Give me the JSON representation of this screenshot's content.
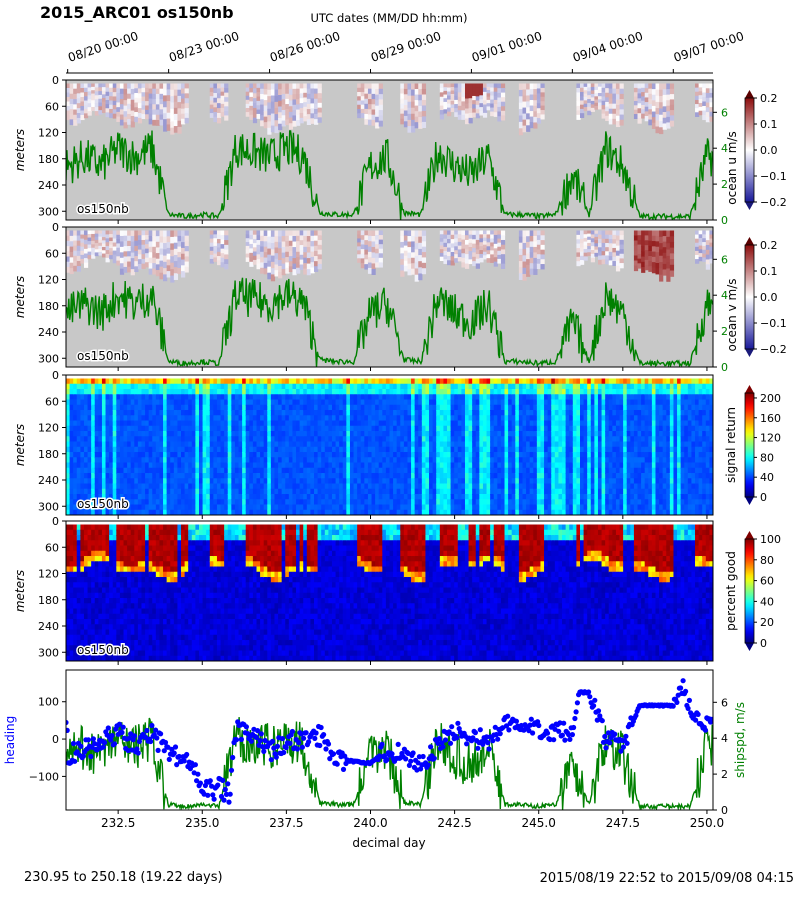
{
  "figure": {
    "title": "2015_ARC01 os150nb",
    "top_axis_label": "UTC dates (MM/DD hh:mm)",
    "top_ticks": [
      "08/20 00:00",
      "08/23 00:00",
      "08/26 00:00",
      "08/29 00:00",
      "09/01 00:00",
      "09/04 00:00",
      "09/07 00:00"
    ],
    "xlabel": "decimal day",
    "footer_left": "230.95 to 250.18 (19.22 days)",
    "footer_right": "2015/08/19 22:52 to 2015/09/08 04:15"
  },
  "chart_data": [
    {
      "type": "heatmap",
      "panel": "ocean u",
      "ylabel": "meters",
      "y_ticks": [
        0,
        60,
        120,
        180,
        240,
        300
      ],
      "ylim": [
        320,
        0
      ],
      "xlim": [
        230.95,
        250.18
      ],
      "colorbar_label": "ocean u m/s",
      "colorbar_ticks": [
        0.2,
        0.1,
        0.0,
        -0.1,
        -0.2
      ],
      "colorbar_range": [
        -0.2,
        0.2
      ],
      "colormap": "bwr",
      "overlay_ticks": [
        0,
        2,
        4,
        6
      ],
      "overlay_color": "#008000",
      "instrument_label": "os150nb"
    },
    {
      "type": "heatmap",
      "panel": "ocean v",
      "ylabel": "meters",
      "y_ticks": [
        0,
        60,
        120,
        180,
        240,
        300
      ],
      "ylim": [
        320,
        0
      ],
      "xlim": [
        230.95,
        250.18
      ],
      "colorbar_label": "ocean v m/s",
      "colorbar_ticks": [
        0.2,
        0.1,
        0.0,
        -0.1,
        -0.2
      ],
      "colorbar_range": [
        -0.2,
        0.2
      ],
      "colormap": "bwr",
      "overlay_ticks": [
        0,
        2,
        4,
        6
      ],
      "overlay_color": "#008000",
      "instrument_label": "os150nb"
    },
    {
      "type": "heatmap",
      "panel": "signal return",
      "ylabel": "meters",
      "y_ticks": [
        0,
        60,
        120,
        180,
        240,
        300
      ],
      "ylim": [
        320,
        0
      ],
      "xlim": [
        230.95,
        250.18
      ],
      "colorbar_label": "signal return",
      "colorbar_ticks": [
        200,
        160,
        120,
        80,
        40,
        0
      ],
      "colorbar_range": [
        0,
        210
      ],
      "colormap": "jet",
      "instrument_label": "os150nb"
    },
    {
      "type": "heatmap",
      "panel": "percent good",
      "ylabel": "meters",
      "y_ticks": [
        0,
        60,
        120,
        180,
        240,
        300
      ],
      "ylim": [
        320,
        0
      ],
      "xlim": [
        230.95,
        250.18
      ],
      "colorbar_label": "percent good",
      "colorbar_ticks": [
        100,
        80,
        60,
        40,
        20,
        0
      ],
      "colorbar_range": [
        0,
        100
      ],
      "colormap": "jet",
      "instrument_label": "os150nb"
    },
    {
      "type": "scatter",
      "panel": "heading and ship speed",
      "xlabel": "decimal day",
      "x_ticks": [
        232.5,
        235.0,
        237.5,
        240.0,
        242.5,
        245.0,
        247.5,
        250.0
      ],
      "x_tick_labels": [
        "232.5",
        "235.0",
        "237.5",
        "240.0",
        "242.5",
        "245.0",
        "247.5",
        "250.0"
      ],
      "xlim": [
        230.95,
        250.18
      ],
      "ylabel_left": "heading",
      "ylabel_left_color": "#0000ff",
      "y_ticks_left": [
        100,
        0,
        -100
      ],
      "ylim_left": [
        -190,
        185
      ],
      "ylabel_right": "shipspd, m/s",
      "ylabel_right_color": "#008000",
      "y_ticks_right": [
        0,
        2,
        4,
        6
      ],
      "ylim_right": [
        0,
        7.8
      ],
      "series": [
        {
          "name": "heading",
          "color": "#0000ff",
          "x": [
            231.0,
            231.5,
            232.0,
            232.5,
            233.0,
            233.5,
            234.0,
            234.5,
            234.8,
            235.0,
            235.3,
            235.5,
            235.8,
            236.0,
            236.5,
            237.0,
            237.5,
            238.0,
            238.5,
            239.0,
            239.5,
            240.0,
            240.5,
            241.0,
            241.5,
            242.0,
            242.5,
            243.0,
            243.5,
            244.0,
            244.5,
            245.0,
            245.5,
            246.0,
            246.2,
            246.5,
            247.0,
            247.5,
            248.0,
            248.5,
            249.0,
            249.3,
            249.6,
            250.0
          ],
          "y": [
            -40,
            -30,
            -10,
            20,
            -20,
            10,
            -30,
            -60,
            -80,
            -120,
            -140,
            -130,
            -150,
            20,
            10,
            -30,
            -10,
            0,
            10,
            -50,
            -60,
            -65,
            -30,
            -40,
            -70,
            -20,
            20,
            10,
            -10,
            40,
            30,
            30,
            20,
            10,
            125,
            125,
            0,
            -20,
            90,
            90,
            90,
            140,
            70,
            30
          ]
        },
        {
          "name": "shipspd, m/s",
          "color": "#008000",
          "x": [
            231.0,
            231.5,
            232.0,
            232.5,
            233.0,
            233.5,
            234.0,
            234.5,
            235.0,
            235.5,
            236.0,
            236.5,
            237.0,
            237.5,
            238.0,
            238.5,
            239.0,
            239.5,
            240.0,
            240.5,
            241.0,
            241.5,
            242.0,
            242.5,
            243.0,
            243.5,
            244.0,
            244.5,
            245.0,
            245.5,
            246.0,
            246.5,
            247.0,
            247.5,
            248.0,
            248.5,
            249.0,
            249.5,
            250.0
          ],
          "y": [
            3.0,
            3.5,
            3.0,
            4.0,
            3.5,
            4.0,
            0.3,
            0.2,
            0.3,
            0.2,
            4.0,
            3.8,
            3.5,
            4.0,
            3.6,
            0.4,
            0.3,
            0.3,
            3.0,
            3.5,
            0.4,
            0.3,
            3.8,
            3.0,
            2.5,
            3.5,
            0.3,
            0.3,
            0.2,
            0.3,
            2.5,
            0.3,
            4.0,
            3.0,
            0.2,
            0.2,
            0.2,
            0.2,
            3.5
          ]
        }
      ]
    }
  ]
}
